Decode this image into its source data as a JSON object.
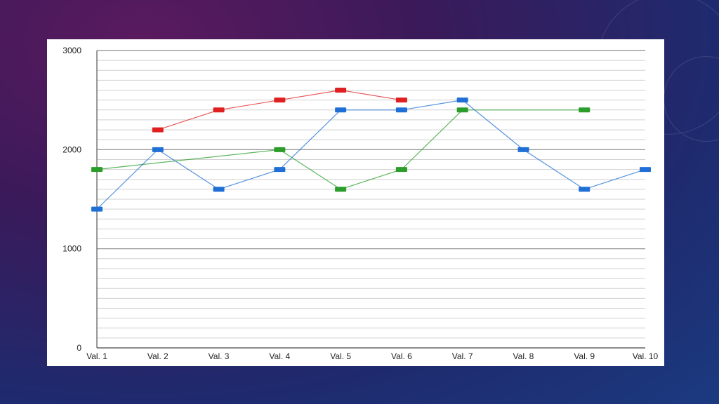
{
  "chart_data": {
    "type": "line",
    "categories": [
      "Val. 1",
      "Val. 2",
      "Val. 3",
      "Val. 4",
      "Val. 5",
      "Val. 6",
      "Val. 7",
      "Val. 8",
      "Val. 9",
      "Val. 10"
    ],
    "ylim": [
      0,
      3000
    ],
    "yticks": [
      "0",
      "1000",
      "2000",
      "3000"
    ],
    "major_step": 1000,
    "minor_step": 100,
    "grid": true,
    "legend": "none",
    "series": [
      {
        "color": "#e02020",
        "values": [
          null,
          2200,
          2400,
          2500,
          2600,
          2500,
          null,
          null,
          null,
          null
        ]
      },
      {
        "color": "#2a9d2a",
        "values": [
          1800,
          null,
          null,
          2000,
          1600,
          1800,
          2400,
          null,
          2400,
          null
        ]
      },
      {
        "color": "#1f6fd6",
        "values": [
          1400,
          2000,
          1600,
          1800,
          2400,
          2400,
          2500,
          2000,
          1600,
          1800
        ]
      }
    ]
  }
}
